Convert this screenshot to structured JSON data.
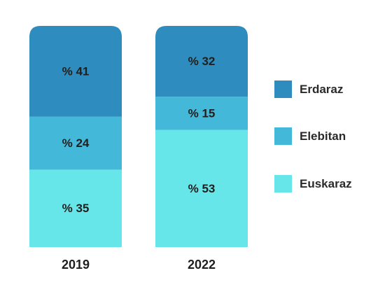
{
  "chart_data": {
    "type": "bar",
    "stacked": true,
    "orientation": "vertical",
    "categories": [
      "2019",
      "2022"
    ],
    "series": [
      {
        "name": "Euskaraz",
        "values": [
          35,
          53
        ],
        "labels": [
          "% 35",
          "% 53"
        ],
        "color": "#67e6ea"
      },
      {
        "name": "Elebitan",
        "values": [
          24,
          15
        ],
        "labels": [
          "% 24",
          "% 15"
        ],
        "color": "#44b8d8"
      },
      {
        "name": "Erdaraz",
        "values": [
          41,
          32
        ],
        "labels": [
          "% 41",
          "% 32"
        ],
        "color": "#2e8dbe"
      }
    ],
    "legend_order": [
      "Erdaraz",
      "Elebitan",
      "Euskaraz"
    ],
    "ylim": [
      0,
      100
    ],
    "title": "",
    "xlabel": "",
    "ylabel": "",
    "grid": false,
    "legend_position": "right"
  }
}
